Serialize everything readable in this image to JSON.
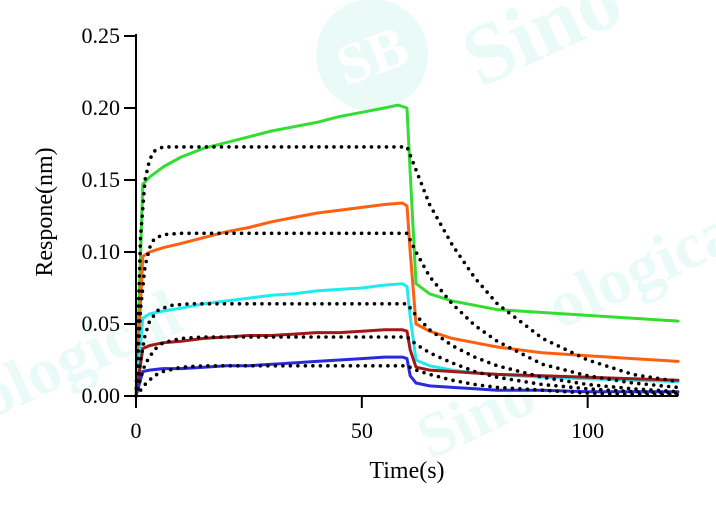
{
  "chart_data": {
    "type": "line",
    "title": "",
    "xlabel": "Time(s)",
    "ylabel": "Respone(nm)",
    "xlim": [
      0,
      120
    ],
    "ylim": [
      0,
      0.25
    ],
    "xticks": [
      0,
      50,
      100
    ],
    "xtick_labels": [
      "0",
      "50",
      "100"
    ],
    "yticks": [
      0,
      0.05,
      0.1,
      0.15,
      0.2,
      0.25
    ],
    "ytick_labels": [
      "0.00",
      "0.05",
      "0.10",
      "0.15",
      "0.20",
      "0.25"
    ],
    "grid": false,
    "legend": "none",
    "series": [
      {
        "color": "#33dd33",
        "style": "solid",
        "x": [
          0,
          1.5,
          3,
          6,
          10,
          15,
          20,
          25,
          30,
          35,
          40,
          45,
          50,
          55,
          58,
          60,
          60.7,
          62,
          65,
          70,
          75,
          80,
          90,
          100,
          110,
          120
        ],
        "y": [
          0,
          0.147,
          0.152,
          0.159,
          0.166,
          0.172,
          0.176,
          0.18,
          0.184,
          0.187,
          0.19,
          0.194,
          0.197,
          0.2,
          0.202,
          0.2,
          0.155,
          0.078,
          0.071,
          0.066,
          0.063,
          0.06,
          0.058,
          0.056,
          0.054,
          0.052
        ]
      },
      {
        "color": "#ff6010",
        "style": "solid",
        "x": [
          0,
          1.5,
          3,
          6,
          10,
          15,
          20,
          25,
          30,
          35,
          40,
          45,
          50,
          55,
          59,
          60,
          60.7,
          62,
          65,
          70,
          75,
          80,
          90,
          100,
          110,
          120
        ],
        "y": [
          0,
          0.097,
          0.1,
          0.103,
          0.106,
          0.11,
          0.114,
          0.117,
          0.121,
          0.124,
          0.127,
          0.129,
          0.131,
          0.133,
          0.134,
          0.132,
          0.1,
          0.05,
          0.045,
          0.04,
          0.037,
          0.034,
          0.03,
          0.028,
          0.026,
          0.024
        ]
      },
      {
        "color": "#22e8f0",
        "style": "solid",
        "x": [
          0,
          1.5,
          3,
          6,
          10,
          15,
          20,
          25,
          30,
          35,
          40,
          45,
          50,
          55,
          59,
          60,
          60.7,
          62,
          65,
          70,
          75,
          80,
          90,
          100,
          110,
          120
        ],
        "y": [
          0,
          0.054,
          0.057,
          0.059,
          0.061,
          0.064,
          0.066,
          0.068,
          0.07,
          0.071,
          0.073,
          0.074,
          0.075,
          0.077,
          0.078,
          0.076,
          0.055,
          0.025,
          0.021,
          0.018,
          0.016,
          0.015,
          0.013,
          0.012,
          0.011,
          0.01
        ]
      },
      {
        "color": "#a01818",
        "style": "solid",
        "x": [
          0,
          1.5,
          3,
          6,
          10,
          15,
          20,
          25,
          30,
          35,
          40,
          45,
          50,
          55,
          59,
          60,
          60.7,
          62,
          65,
          70,
          75,
          80,
          90,
          100,
          110,
          120
        ],
        "y": [
          0,
          0.033,
          0.035,
          0.037,
          0.038,
          0.04,
          0.041,
          0.042,
          0.042,
          0.043,
          0.044,
          0.044,
          0.045,
          0.046,
          0.046,
          0.045,
          0.032,
          0.02,
          0.018,
          0.017,
          0.016,
          0.015,
          0.014,
          0.013,
          0.012,
          0.011
        ]
      },
      {
        "color": "#2a2adc",
        "style": "solid",
        "x": [
          0,
          1.5,
          3,
          6,
          10,
          15,
          20,
          25,
          30,
          35,
          40,
          45,
          50,
          55,
          59,
          60,
          60.7,
          62,
          65,
          70,
          75,
          80,
          90,
          100,
          110,
          120
        ],
        "y": [
          0,
          0.017,
          0.018,
          0.019,
          0.019,
          0.02,
          0.021,
          0.021,
          0.022,
          0.023,
          0.024,
          0.025,
          0.026,
          0.027,
          0.027,
          0.026,
          0.014,
          0.009,
          0.007,
          0.006,
          0.005,
          0.004,
          0.004,
          0.003,
          0.003,
          0.003
        ]
      },
      {
        "color": "#000000",
        "style": "dotted",
        "x": [
          0,
          1,
          2,
          3,
          4,
          6,
          10,
          20,
          40,
          60,
          62,
          65,
          70,
          75,
          80,
          90,
          100,
          110,
          120
        ],
        "y": [
          0,
          0.11,
          0.15,
          0.164,
          0.17,
          0.173,
          0.173,
          0.173,
          0.173,
          0.173,
          0.157,
          0.133,
          0.105,
          0.082,
          0.064,
          0.04,
          0.025,
          0.015,
          0.01
        ]
      },
      {
        "color": "#000000",
        "style": "dotted",
        "x": [
          0,
          1,
          2,
          3,
          4,
          6,
          10,
          20,
          40,
          60,
          62,
          65,
          70,
          75,
          80,
          90,
          100,
          110,
          120
        ],
        "y": [
          0,
          0.06,
          0.09,
          0.103,
          0.109,
          0.112,
          0.113,
          0.113,
          0.113,
          0.113,
          0.1,
          0.083,
          0.064,
          0.049,
          0.038,
          0.022,
          0.014,
          0.009,
          0.006
        ]
      },
      {
        "color": "#000000",
        "style": "dotted",
        "x": [
          0,
          1,
          2,
          3,
          5,
          8,
          12,
          20,
          40,
          60,
          62,
          65,
          70,
          75,
          80,
          90,
          100,
          110,
          120
        ],
        "y": [
          0,
          0.025,
          0.042,
          0.052,
          0.06,
          0.063,
          0.064,
          0.064,
          0.064,
          0.064,
          0.056,
          0.046,
          0.035,
          0.027,
          0.021,
          0.013,
          0.008,
          0.005,
          0.003
        ]
      },
      {
        "color": "#000000",
        "style": "dotted",
        "x": [
          0,
          1,
          2,
          4,
          6,
          10,
          15,
          20,
          40,
          60,
          62,
          65,
          70,
          75,
          80,
          90,
          100,
          110,
          120
        ],
        "y": [
          0,
          0.012,
          0.022,
          0.032,
          0.037,
          0.04,
          0.041,
          0.041,
          0.041,
          0.041,
          0.036,
          0.03,
          0.023,
          0.017,
          0.013,
          0.008,
          0.005,
          0.003,
          0.002
        ]
      },
      {
        "color": "#000000",
        "style": "dotted",
        "x": [
          0,
          2,
          4,
          6,
          10,
          15,
          20,
          30,
          40,
          60,
          62,
          65,
          70,
          75,
          80,
          90,
          100,
          110,
          120
        ],
        "y": [
          0,
          0.008,
          0.014,
          0.017,
          0.02,
          0.021,
          0.021,
          0.021,
          0.021,
          0.021,
          0.018,
          0.015,
          0.011,
          0.008,
          0.006,
          0.004,
          0.002,
          0.001,
          0.001
        ]
      }
    ]
  },
  "watermark": {
    "badge_text": "SB",
    "brand_text": "Sino",
    "side_text": "ological",
    "color": "#2fd6a8"
  }
}
